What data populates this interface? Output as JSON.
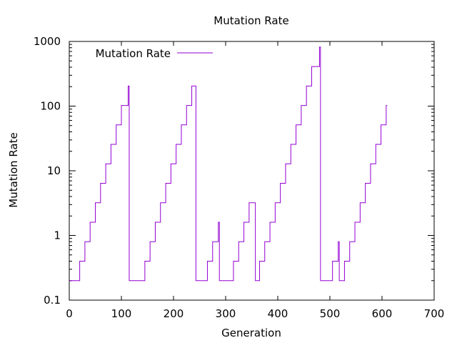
{
  "chart_data": {
    "type": "line",
    "title": "Mutation Rate",
    "xlabel": "Generation",
    "ylabel": "Mutation Rate",
    "xlim": [
      0,
      700
    ],
    "ylim": [
      0.1,
      1000
    ],
    "y_scale": "log",
    "grid": false,
    "legend_position": "top-left",
    "x_ticks": [
      0,
      100,
      200,
      300,
      400,
      500,
      600,
      700
    ],
    "x_tick_labels": [
      "0",
      "100",
      "200",
      "300",
      "400",
      "500",
      "600",
      "700"
    ],
    "y_ticks": [
      0.1,
      1,
      10,
      100,
      1000
    ],
    "y_tick_labels": [
      "0.1",
      "1",
      "10",
      "100",
      "1000"
    ],
    "series": [
      {
        "name": "Mutation Rate",
        "color": "#9400d3",
        "x": [
          0,
          20,
          20,
          30,
          30,
          40,
          40,
          50,
          50,
          60,
          60,
          70,
          70,
          80,
          80,
          90,
          90,
          100,
          100,
          110,
          110,
          113,
          113,
          115,
          115,
          145,
          145,
          155,
          155,
          165,
          165,
          175,
          175,
          185,
          185,
          195,
          195,
          205,
          205,
          215,
          215,
          225,
          225,
          235,
          235,
          241,
          241,
          243,
          243,
          265,
          265,
          275,
          275,
          285,
          285,
          286,
          286,
          288,
          288,
          315,
          315,
          325,
          325,
          335,
          335,
          345,
          345,
          355,
          355,
          357,
          357,
          365,
          365,
          375,
          375,
          385,
          385,
          395,
          395,
          405,
          405,
          415,
          415,
          425,
          425,
          435,
          435,
          445,
          445,
          455,
          455,
          465,
          465,
          475,
          475,
          480,
          480,
          482,
          482,
          505,
          505,
          515,
          515,
          516,
          516,
          518,
          518,
          528,
          528,
          538,
          538,
          548,
          548,
          558,
          558,
          568,
          568,
          578,
          578,
          588,
          588,
          598,
          598,
          608,
          608,
          610
        ],
        "y": [
          0.2,
          0.2,
          0.4,
          0.4,
          0.8,
          0.8,
          1.6,
          1.6,
          3.2,
          3.2,
          6.4,
          6.4,
          12.8,
          12.8,
          25.6,
          25.6,
          51.2,
          51.2,
          102.4,
          102.4,
          102.4,
          102.4,
          204.8,
          204.8,
          0.2,
          0.2,
          0.4,
          0.4,
          0.8,
          0.8,
          1.6,
          1.6,
          3.2,
          3.2,
          6.4,
          6.4,
          12.8,
          12.8,
          25.6,
          25.6,
          51.2,
          51.2,
          102.4,
          102.4,
          204.8,
          204.8,
          204.8,
          204.8,
          0.2,
          0.2,
          0.4,
          0.4,
          0.8,
          0.8,
          0.8,
          0.8,
          1.6,
          1.6,
          0.2,
          0.2,
          0.4,
          0.4,
          0.8,
          0.8,
          1.6,
          1.6,
          3.2,
          3.2,
          3.2,
          3.2,
          0.2,
          0.2,
          0.4,
          0.4,
          0.8,
          0.8,
          1.6,
          1.6,
          3.2,
          3.2,
          6.4,
          6.4,
          12.8,
          12.8,
          25.6,
          25.6,
          51.2,
          51.2,
          102.4,
          102.4,
          204.8,
          204.8,
          409.6,
          409.6,
          409.6,
          409.6,
          819.2,
          819.2,
          0.2,
          0.2,
          0.4,
          0.4,
          0.4,
          0.4,
          0.8,
          0.8,
          0.2,
          0.2,
          0.4,
          0.4,
          0.8,
          0.8,
          1.6,
          1.6,
          3.2,
          3.2,
          6.4,
          6.4,
          12.8,
          12.8,
          25.6,
          25.6,
          51.2,
          51.2,
          102.4,
          102.4
        ]
      }
    ]
  }
}
